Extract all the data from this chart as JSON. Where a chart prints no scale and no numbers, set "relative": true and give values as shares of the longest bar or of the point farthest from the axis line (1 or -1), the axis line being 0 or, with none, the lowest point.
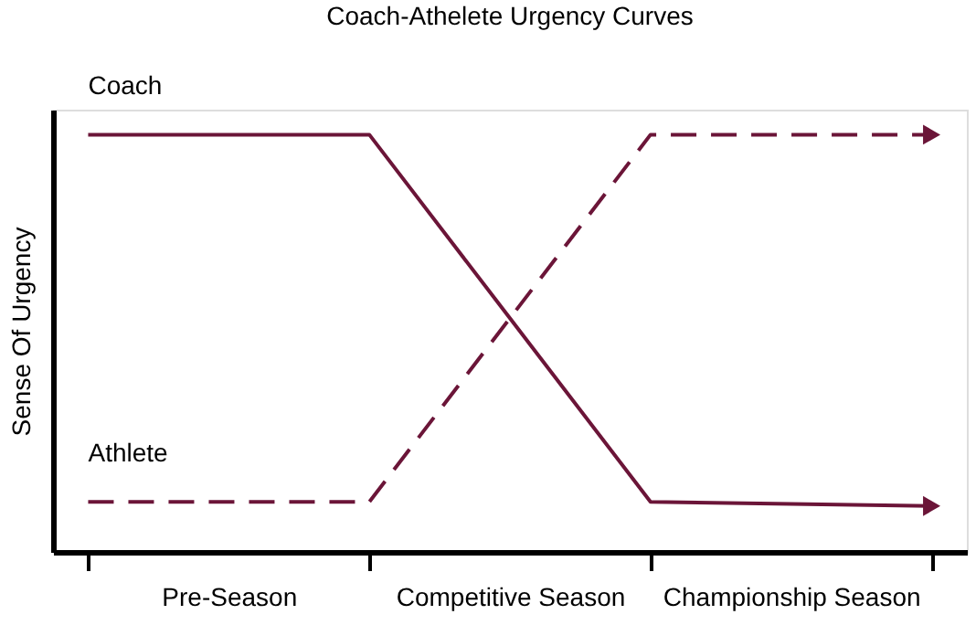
{
  "chart_data": {
    "type": "line",
    "title": "Coach-Athelete Urgency Curves",
    "ylabel": "Sense Of Urgency",
    "relative": true,
    "grid": false,
    "marker": "none",
    "categories": [
      null,
      "Pre-Season",
      null,
      "Competitive Season",
      null,
      "Championship Season",
      null
    ],
    "series": [
      {
        "name": "Coach",
        "color": "#6b1538",
        "line_style": "solid",
        "values": [
          1,
          1,
          1,
          0.56,
          0.12,
          0.115,
          0.11
        ]
      },
      {
        "name": "Athlete",
        "color": "#6b1538",
        "line_style": "dashed",
        "values": [
          0.12,
          0.12,
          0.12,
          0.56,
          1,
          1,
          1
        ]
      }
    ]
  }
}
